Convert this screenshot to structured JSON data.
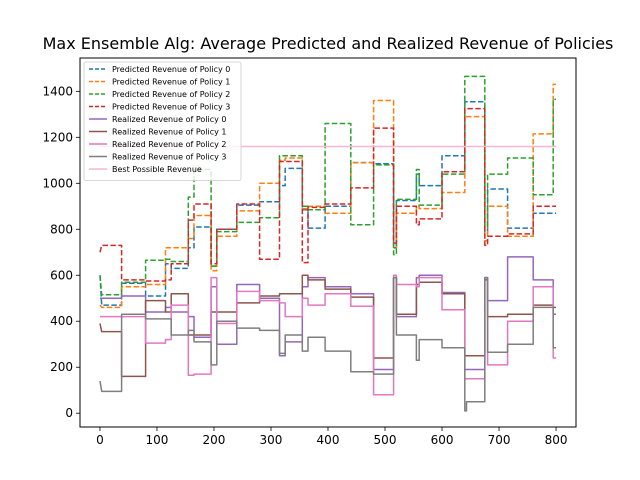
{
  "chart_data": {
    "type": "line",
    "title": "Max Ensemble Alg: Average Predicted and Realized Revenue of Policies",
    "xlabel": "",
    "ylabel": "",
    "xlim": [
      -35,
      835
    ],
    "ylim": [
      -60,
      1545
    ],
    "xticks": [
      0,
      100,
      200,
      300,
      400,
      500,
      600,
      700,
      800
    ],
    "yticks": [
      0,
      200,
      400,
      600,
      800,
      1000,
      1200,
      1400
    ],
    "legend_position": "top-left",
    "grid": false,
    "series": [
      {
        "name": "Predicted Revenue of Policy 0",
        "color": "#1f77b4",
        "dashed": true,
        "x": [
          0,
          3,
          3,
          38,
          38,
          80,
          80,
          115,
          115,
          125,
          125,
          155,
          155,
          165,
          165,
          195,
          195,
          205,
          205,
          240,
          240,
          280,
          280,
          315,
          315,
          325,
          325,
          355,
          355,
          365,
          365,
          395,
          395,
          440,
          440,
          480,
          480,
          515,
          515,
          520,
          520,
          555,
          555,
          560,
          560,
          600,
          600,
          640,
          640,
          675,
          675,
          680,
          680,
          715,
          715,
          760,
          760,
          800
        ],
        "y": [
          600,
          470,
          470,
          470,
          565,
          565,
          510,
          510,
          650,
          650,
          630,
          630,
          720,
          720,
          810,
          810,
          640,
          640,
          800,
          800,
          905,
          905,
          920,
          920,
          990,
          990,
          1065,
          1065,
          885,
          885,
          805,
          805,
          900,
          900,
          1090,
          1090,
          1085,
          1085,
          720,
          720,
          925,
          925,
          1040,
          1040,
          990,
          990,
          1120,
          1120,
          1355,
          1355,
          780,
          780,
          975,
          975,
          805,
          805,
          870,
          870
        ]
      },
      {
        "name": "Predicted Revenue of Policy 1",
        "color": "#ff7f0e",
        "dashed": true,
        "x": [
          0,
          3,
          3,
          38,
          38,
          80,
          80,
          115,
          115,
          125,
          125,
          155,
          155,
          165,
          165,
          195,
          195,
          205,
          205,
          240,
          240,
          280,
          280,
          315,
          315,
          325,
          325,
          355,
          355,
          365,
          365,
          395,
          395,
          440,
          440,
          480,
          480,
          515,
          515,
          520,
          520,
          555,
          555,
          560,
          560,
          600,
          600,
          640,
          640,
          675,
          675,
          680,
          680,
          715,
          715,
          760,
          760,
          795,
          795,
          800
        ],
        "y": [
          470,
          460,
          460,
          460,
          550,
          550,
          560,
          560,
          720,
          720,
          720,
          720,
          760,
          760,
          860,
          860,
          620,
          620,
          770,
          770,
          880,
          880,
          1000,
          1000,
          1100,
          1100,
          1110,
          1110,
          890,
          890,
          900,
          900,
          870,
          870,
          1090,
          1090,
          1360,
          1360,
          720,
          720,
          870,
          870,
          900,
          900,
          890,
          890,
          960,
          960,
          1290,
          1290,
          750,
          750,
          900,
          900,
          770,
          770,
          1215,
          1215,
          1430,
          1430
        ]
      },
      {
        "name": "Predicted Revenue of Policy 2",
        "color": "#2ca02c",
        "dashed": true,
        "x": [
          0,
          3,
          3,
          38,
          38,
          80,
          80,
          115,
          115,
          125,
          125,
          155,
          155,
          165,
          165,
          195,
          195,
          205,
          205,
          240,
          240,
          280,
          280,
          315,
          315,
          325,
          325,
          355,
          355,
          365,
          365,
          395,
          395,
          440,
          440,
          480,
          480,
          515,
          515,
          520,
          520,
          555,
          555,
          560,
          560,
          600,
          600,
          640,
          640,
          675,
          675,
          680,
          680,
          715,
          715,
          760,
          760,
          795,
          795,
          800
        ],
        "y": [
          600,
          515,
          515,
          515,
          570,
          570,
          665,
          665,
          670,
          670,
          660,
          660,
          940,
          940,
          1060,
          1060,
          640,
          640,
          790,
          790,
          830,
          830,
          850,
          850,
          1120,
          1120,
          1120,
          1120,
          900,
          900,
          885,
          885,
          1260,
          1260,
          820,
          820,
          1080,
          1080,
          690,
          690,
          930,
          930,
          1060,
          1060,
          905,
          905,
          1040,
          1040,
          1465,
          1465,
          810,
          810,
          1040,
          1040,
          1110,
          1110,
          950,
          950,
          1365,
          1365
        ]
      },
      {
        "name": "Predicted Revenue of Policy 3",
        "color": "#d62728",
        "dashed": true,
        "x": [
          0,
          3,
          3,
          38,
          38,
          80,
          80,
          115,
          115,
          125,
          125,
          155,
          155,
          165,
          165,
          195,
          195,
          205,
          205,
          240,
          240,
          280,
          280,
          315,
          315,
          325,
          325,
          355,
          355,
          365,
          365,
          395,
          395,
          440,
          440,
          480,
          480,
          515,
          515,
          520,
          520,
          555,
          555,
          560,
          560,
          600,
          600,
          640,
          640,
          675,
          675,
          680,
          680,
          715,
          715,
          760,
          760,
          800
        ],
        "y": [
          700,
          730,
          730,
          730,
          580,
          580,
          575,
          575,
          580,
          580,
          650,
          650,
          840,
          840,
          910,
          910,
          650,
          650,
          800,
          800,
          910,
          910,
          670,
          670,
          1095,
          1095,
          1095,
          1095,
          655,
          655,
          895,
          895,
          910,
          910,
          980,
          980,
          1240,
          1240,
          740,
          740,
          900,
          900,
          820,
          820,
          845,
          845,
          1050,
          1050,
          1325,
          1325,
          730,
          730,
          770,
          770,
          780,
          780,
          900,
          900
        ]
      },
      {
        "name": "Realized Revenue of Policy 0",
        "color": "#9467bd",
        "dashed": false,
        "x": [
          0,
          3,
          3,
          38,
          38,
          80,
          80,
          115,
          115,
          125,
          125,
          155,
          155,
          165,
          165,
          195,
          195,
          205,
          205,
          240,
          240,
          280,
          280,
          315,
          315,
          325,
          325,
          355,
          355,
          365,
          365,
          395,
          395,
          440,
          440,
          480,
          480,
          515,
          515,
          520,
          520,
          555,
          555,
          560,
          560,
          600,
          600,
          640,
          640,
          675,
          675,
          680,
          680,
          715,
          715,
          760,
          760,
          795,
          795,
          800
        ],
        "y": [
          500,
          500,
          500,
          500,
          510,
          510,
          440,
          440,
          460,
          460,
          440,
          440,
          420,
          420,
          330,
          330,
          550,
          550,
          300,
          300,
          560,
          560,
          500,
          500,
          250,
          250,
          310,
          310,
          550,
          550,
          590,
          590,
          550,
          550,
          520,
          520,
          190,
          190,
          590,
          590,
          420,
          420,
          590,
          590,
          600,
          600,
          525,
          525,
          190,
          190,
          590,
          590,
          490,
          490,
          680,
          680,
          580,
          580,
          430,
          430
        ]
      },
      {
        "name": "Realized Revenue of Policy 1",
        "color": "#8c564b",
        "dashed": false,
        "x": [
          0,
          3,
          3,
          38,
          38,
          80,
          80,
          115,
          115,
          125,
          125,
          155,
          155,
          165,
          165,
          195,
          195,
          205,
          205,
          240,
          240,
          280,
          280,
          315,
          315,
          325,
          325,
          355,
          355,
          365,
          365,
          395,
          395,
          440,
          440,
          480,
          480,
          515,
          515,
          520,
          520,
          555,
          555,
          560,
          560,
          600,
          600,
          640,
          640,
          675,
          675,
          680,
          680,
          715,
          715,
          760,
          760,
          795,
          795,
          800
        ],
        "y": [
          390,
          355,
          355,
          355,
          160,
          160,
          490,
          490,
          440,
          440,
          520,
          520,
          340,
          340,
          340,
          340,
          440,
          440,
          440,
          440,
          480,
          480,
          510,
          510,
          520,
          520,
          520,
          520,
          600,
          600,
          580,
          580,
          540,
          540,
          505,
          505,
          240,
          240,
          590,
          590,
          430,
          430,
          560,
          560,
          570,
          570,
          520,
          520,
          250,
          250,
          580,
          580,
          420,
          420,
          430,
          430,
          470,
          470,
          460,
          460
        ]
      },
      {
        "name": "Realized Revenue of Policy 2",
        "color": "#e377c2",
        "dashed": false,
        "x": [
          0,
          3,
          3,
          38,
          38,
          80,
          80,
          115,
          115,
          125,
          125,
          155,
          155,
          165,
          165,
          195,
          195,
          205,
          205,
          240,
          240,
          280,
          280,
          315,
          315,
          325,
          325,
          355,
          355,
          365,
          365,
          395,
          395,
          440,
          440,
          480,
          480,
          515,
          515,
          520,
          520,
          555,
          555,
          560,
          560,
          600,
          600,
          640,
          640,
          675,
          675,
          680,
          680,
          715,
          715,
          760,
          760,
          795,
          795,
          800
        ],
        "y": [
          420,
          420,
          420,
          420,
          420,
          420,
          305,
          305,
          320,
          320,
          470,
          470,
          165,
          165,
          170,
          170,
          590,
          590,
          390,
          390,
          530,
          530,
          490,
          490,
          480,
          480,
          420,
          420,
          500,
          500,
          470,
          470,
          520,
          520,
          465,
          465,
          80,
          80,
          600,
          600,
          560,
          560,
          550,
          550,
          590,
          590,
          450,
          450,
          150,
          150,
          590,
          590,
          210,
          210,
          400,
          400,
          550,
          550,
          240,
          240
        ]
      },
      {
        "name": "Realized Revenue of Policy 3",
        "color": "#7f7f7f",
        "dashed": false,
        "x": [
          0,
          3,
          3,
          38,
          38,
          80,
          80,
          115,
          115,
          125,
          125,
          155,
          155,
          165,
          165,
          195,
          195,
          205,
          205,
          240,
          240,
          280,
          280,
          315,
          315,
          325,
          325,
          355,
          355,
          365,
          365,
          395,
          395,
          440,
          440,
          480,
          480,
          515,
          515,
          520,
          520,
          555,
          555,
          560,
          560,
          600,
          600,
          640,
          640,
          643,
          643,
          675,
          675,
          680,
          680,
          715,
          715,
          760,
          760,
          795,
          795,
          800
        ],
        "y": [
          140,
          95,
          95,
          95,
          430,
          430,
          410,
          410,
          410,
          410,
          340,
          340,
          360,
          360,
          310,
          310,
          210,
          210,
          400,
          400,
          370,
          370,
          360,
          360,
          260,
          260,
          340,
          340,
          270,
          270,
          330,
          330,
          270,
          270,
          180,
          180,
          170,
          170,
          590,
          590,
          340,
          340,
          230,
          230,
          320,
          320,
          285,
          285,
          10,
          10,
          50,
          50,
          590,
          590,
          265,
          265,
          300,
          300,
          460,
          460,
          285,
          285
        ]
      },
      {
        "name": "Best Possible Revenue",
        "color": "#f7b6d2",
        "dashed": false,
        "x": [
          0,
          800
        ],
        "y": [
          1160,
          1160
        ]
      }
    ]
  }
}
